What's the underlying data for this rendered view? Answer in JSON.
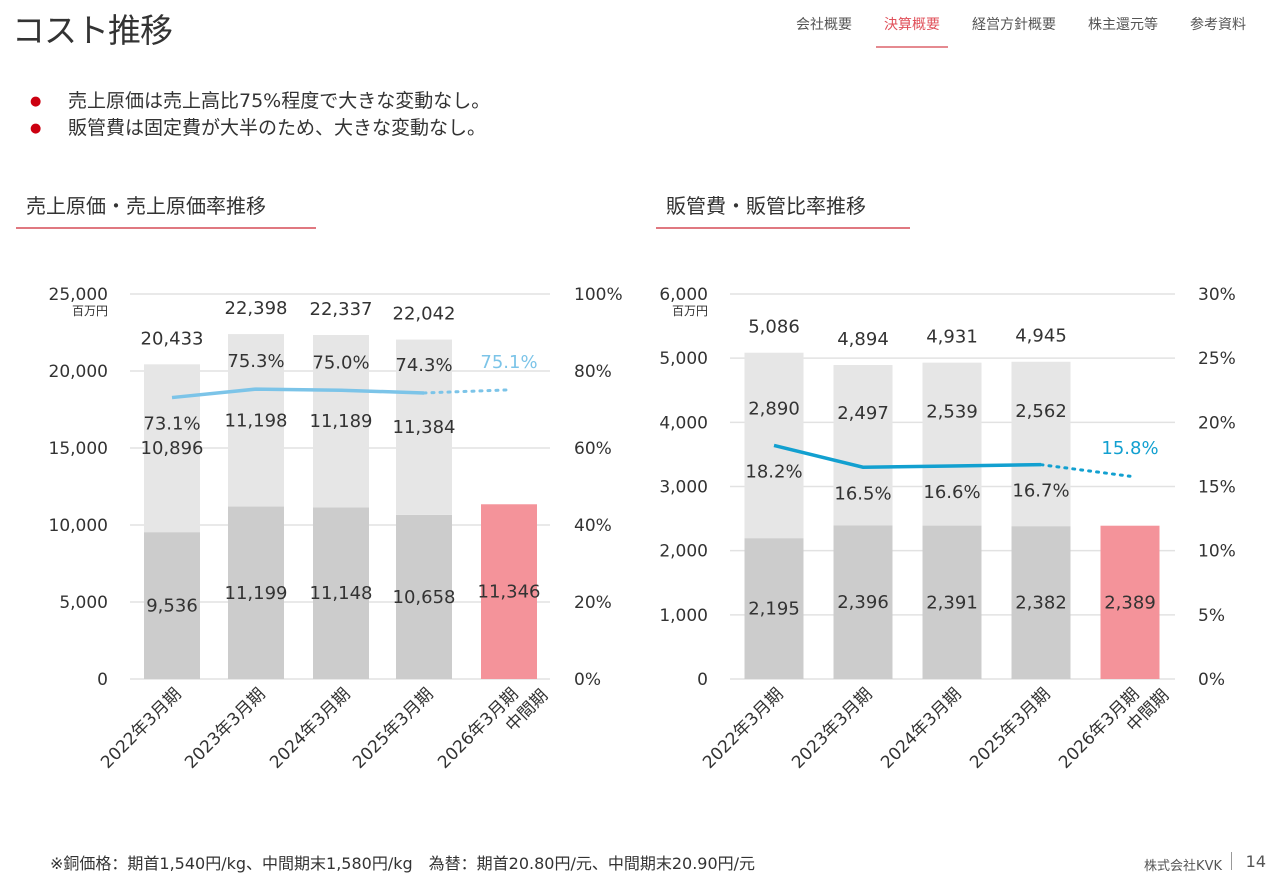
{
  "header": {
    "title": "コスト推移",
    "nav": [
      {
        "label": "会社概要",
        "active": false
      },
      {
        "label": "決算概要",
        "active": true
      },
      {
        "label": "経営方針概要",
        "active": false
      },
      {
        "label": "株主還元等",
        "active": false
      },
      {
        "label": "参考資料",
        "active": false
      }
    ]
  },
  "bullets": [
    "売上原価は売上高比75%程度で大きな変動なし。",
    "販管費は固定費が大半のため、大きな変動なし。"
  ],
  "sections": {
    "left_title": "売上原価・売上原価率推移",
    "right_title": "販管費・販管比率推移"
  },
  "colors": {
    "bar_bottom": "#cccccc",
    "bar_top": "#e6e6e6",
    "bar_interim": "#f4939a",
    "line_left": "#7cc4e8",
    "line_right": "#12a0d0",
    "accent": "#e0505a"
  },
  "chart_data": [
    {
      "type": "bar",
      "stacked": true,
      "unit_label": "百万円",
      "categories": [
        "2022年3月期",
        "2023年3月期",
        "2024年3月期",
        "2025年3月期",
        "2026年3月期\n中間期"
      ],
      "series": [
        {
          "values": [
            9536,
            11199,
            11148,
            10658,
            11346
          ],
          "labels": [
            "9,536",
            "11,199",
            "11,148",
            "10,658",
            "11,346"
          ]
        },
        {
          "values": [
            10896,
            11198,
            11189,
            11384,
            null
          ],
          "labels": [
            "10,896",
            "11,198",
            "11,189",
            "11,384",
            ""
          ]
        }
      ],
      "totals": [
        "20,433",
        "22,398",
        "22,337",
        "22,042",
        ""
      ],
      "total_values": [
        20433,
        22398,
        22337,
        22042,
        null
      ],
      "ratio_line": {
        "values": [
          73.1,
          75.3,
          75.0,
          74.3,
          75.1
        ],
        "labels": [
          "73.1%",
          "75.3%",
          "75.0%",
          "74.3%",
          "75.1%"
        ],
        "last_dotted": true
      },
      "ylim": [
        0,
        25000
      ],
      "yticks": [
        "0",
        "5,000",
        "10,000",
        "15,000",
        "20,000",
        "25,000"
      ],
      "y2lim": [
        0,
        100
      ],
      "y2ticks": [
        "0%",
        "20%",
        "40%",
        "60%",
        "80%",
        "100%"
      ],
      "grid": true
    },
    {
      "type": "bar",
      "stacked": true,
      "unit_label": "百万円",
      "categories": [
        "2022年3月期",
        "2023年3月期",
        "2024年3月期",
        "2025年3月期",
        "2026年3月期\n中間期"
      ],
      "series": [
        {
          "values": [
            2195,
            2396,
            2391,
            2382,
            2389
          ],
          "labels": [
            "2,195",
            "2,396",
            "2,391",
            "2,382",
            "2,389"
          ]
        },
        {
          "values": [
            2890,
            2497,
            2539,
            2562,
            null
          ],
          "labels": [
            "2,890",
            "2,497",
            "2,539",
            "2,562",
            ""
          ]
        }
      ],
      "totals": [
        "5,086",
        "4,894",
        "4,931",
        "4,945",
        ""
      ],
      "total_values": [
        5086,
        4894,
        4931,
        4945,
        null
      ],
      "ratio_line": {
        "values": [
          18.2,
          16.5,
          16.6,
          16.7,
          15.8
        ],
        "labels": [
          "18.2%",
          "16.5%",
          "16.6%",
          "16.7%",
          "15.8%"
        ],
        "last_dotted": true
      },
      "ylim": [
        0,
        6000
      ],
      "yticks": [
        "0",
        "1,000",
        "2,000",
        "3,000",
        "4,000",
        "5,000",
        "6,000"
      ],
      "y2lim": [
        0,
        30
      ],
      "y2ticks": [
        "0%",
        "5%",
        "10%",
        "15%",
        "20%",
        "25%",
        "30%"
      ],
      "grid": true
    }
  ],
  "footer": {
    "note": "※銅価格：期首1,540円/kg、中間期末1,580円/kg　為替：期首20.80円/元、中間期末20.90円/元",
    "company": "株式会社KVK",
    "page": "14"
  }
}
